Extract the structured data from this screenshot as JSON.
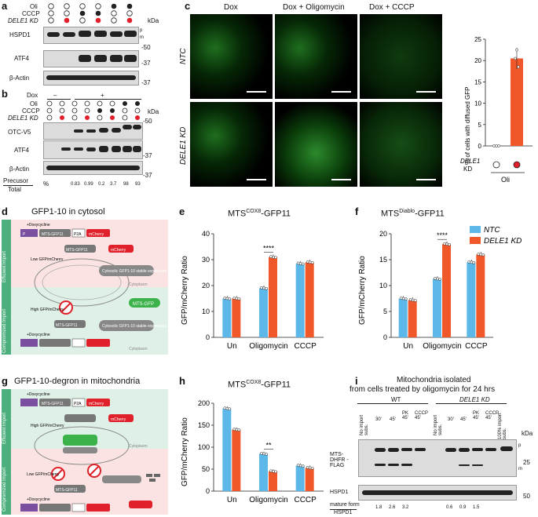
{
  "panels": {
    "a": {
      "letter": "a",
      "row_labels": [
        "Oli",
        "CCCP",
        "DELE1 KD"
      ],
      "blot_labels": [
        "HSPD1",
        "ATF4",
        "β-Actin"
      ],
      "kda_label": "kDa",
      "mw": [
        "-50",
        "-37",
        "-37"
      ],
      "p_label": "p",
      "m_label": "m"
    },
    "b": {
      "letter": "b",
      "row_labels": [
        "Dox",
        "Oli",
        "CCCP",
        "DELE1 KD"
      ],
      "dox_minus": "–",
      "dox_plus": "+",
      "blot_labels": [
        "OTC-V5",
        "ATF4",
        "β-Actin"
      ],
      "kda_label": "kDa",
      "mw": [
        "-50",
        "-37",
        "-37"
      ],
      "precursor_label": "Precusor",
      "total_label": "Total",
      "percent": "%",
      "values": [
        "0.83",
        "0.99",
        "0.2",
        "3.7",
        "98",
        "93"
      ]
    },
    "c": {
      "letter": "c",
      "col_titles": [
        "Dox",
        "Dox + Oligomycin",
        "Dox + CCCP"
      ],
      "row_labels": [
        "NTC",
        "DELE1 KD"
      ],
      "bar_ylabel": "% of cells with diffused GFP",
      "bar_yticks": [
        "0",
        "5",
        "10",
        "15",
        "20",
        "25"
      ],
      "bar_xlabel_kd": "DELE1",
      "bar_xlabel_kd2": "KD",
      "bar_xlabel_oli": "Oli"
    },
    "d": {
      "letter": "d",
      "title": "GFP1-10 in cytosol",
      "side_top": "Efficient Import",
      "side_bottom": "Compromized Import",
      "doxycycline": "+Doxycycline",
      "promoter": "P",
      "mts": "MTS-GFP11",
      "p2a": "P2A",
      "mcherry": "mCherry",
      "low_ratio": "Low GFP/mCherry",
      "high_ratio": "High GFP/mCherry",
      "cyto_label": "Cytosolic GFP1-10 stable expression",
      "cytoplasm": "Cytoplasm",
      "mtsgfp": "MTS-GFP"
    },
    "e": {
      "letter": "e",
      "title": "MTS",
      "title_sup": "COX8",
      "title_end": "-GFP11",
      "ylabel": "GFP/mCherry Ratio",
      "sig": "****"
    },
    "f": {
      "letter": "f",
      "title": "MTS",
      "title_sup": "Diablo",
      "title_end": "-GFP11",
      "ylabel": "GFP/mCherry Ratio",
      "sig": "****",
      "legend": [
        "NTC",
        "DELE1 KD"
      ]
    },
    "g": {
      "letter": "g",
      "title": "GFP1-10-degron in mitochondria",
      "side_top": "Efficient Import",
      "side_bottom": "Compromized Import",
      "doxycycline": "+Doxycycline",
      "mts": "MTS-GFP11",
      "p2a": "P2A",
      "mcherry": "mCherry",
      "high_ratio": "High GFP/mCherry",
      "low_ratio": "Low GFP/mCherry",
      "cytoplasm": "Cytoplasm"
    },
    "h": {
      "letter": "h",
      "title": "MTS",
      "title_sup": "COX8",
      "title_end": "-GFP11",
      "ylabel": "GFP/mCherry Ratio",
      "sig": "**"
    },
    "i": {
      "letter": "i",
      "title_line1": "Mitochondria isolated",
      "title_line2": "from cells treated by oligomycin for 24 hrs",
      "wt_label": "WT",
      "kd_label": "DELE1 KD",
      "lanes": [
        "No import subs.",
        "30'",
        "45'",
        "PK 45'",
        "CCCP 45'",
        "No import subs.",
        "30'",
        "45'",
        "PK 45'",
        "CCCP 45'",
        "100% import subs."
      ],
      "blot_labels": [
        "MTS-DHFR -FLAG",
        "HSPD1"
      ],
      "kda_label": "kDa",
      "mw": [
        "25",
        "50"
      ],
      "p_label": "p",
      "m_label": "m",
      "mature_label": "mature form",
      "hspd1_label": "HSPD1",
      "values": [
        "1.8",
        "2.6",
        "3.2",
        "0.6",
        "0.9",
        "1.5"
      ]
    }
  },
  "colors": {
    "ntc": "#5bb8e8",
    "kd": "#f0582a",
    "red_dot": "#e0202a",
    "green": "#3cb34a",
    "pink_bg": "#fbe3e3",
    "mint_bg": "#dff1e6"
  },
  "chart_data": [
    {
      "type": "bar",
      "panel": "e",
      "categories": [
        "Un",
        "Oligomycin",
        "CCCP"
      ],
      "ylabel": "GFP/mCherry Ratio",
      "ylim": [
        0,
        40
      ],
      "yticks": [
        0,
        10,
        20,
        30,
        40
      ],
      "series": [
        {
          "name": "NTC",
          "values": [
            15,
            19,
            28.5
          ]
        },
        {
          "name": "DELE1 KD",
          "values": [
            15,
            31,
            29
          ]
        }
      ]
    },
    {
      "type": "bar",
      "panel": "f",
      "categories": [
        "Un",
        "Oligomycin",
        "CCCP"
      ],
      "ylabel": "GFP/mCherry Ratio",
      "ylim": [
        0,
        20
      ],
      "yticks": [
        0,
        5,
        10,
        15,
        20
      ],
      "series": [
        {
          "name": "NTC",
          "values": [
            7.5,
            11.3,
            14.5
          ]
        },
        {
          "name": "DELE1 KD",
          "values": [
            7.2,
            18,
            16
          ]
        }
      ]
    },
    {
      "type": "bar",
      "panel": "h",
      "categories": [
        "Un",
        "Oligomycin",
        "CCCP"
      ],
      "ylabel": "GFP/mCherry Ratio",
      "ylim": [
        0,
        200
      ],
      "yticks": [
        0,
        50,
        100,
        150,
        200
      ],
      "series": [
        {
          "name": "NTC",
          "values": [
            188,
            85,
            58
          ]
        },
        {
          "name": "DELE1 KD",
          "values": [
            140,
            45,
            53
          ]
        }
      ]
    },
    {
      "type": "bar",
      "panel": "c",
      "categories": [
        "○",
        "●"
      ],
      "ylabel": "% of cells with diffused GFP",
      "ylim": [
        0,
        25
      ],
      "yticks": [
        0,
        5,
        10,
        15,
        20,
        25
      ],
      "series": [
        {
          "name": "",
          "values": [
            0,
            20.5
          ]
        }
      ]
    }
  ]
}
